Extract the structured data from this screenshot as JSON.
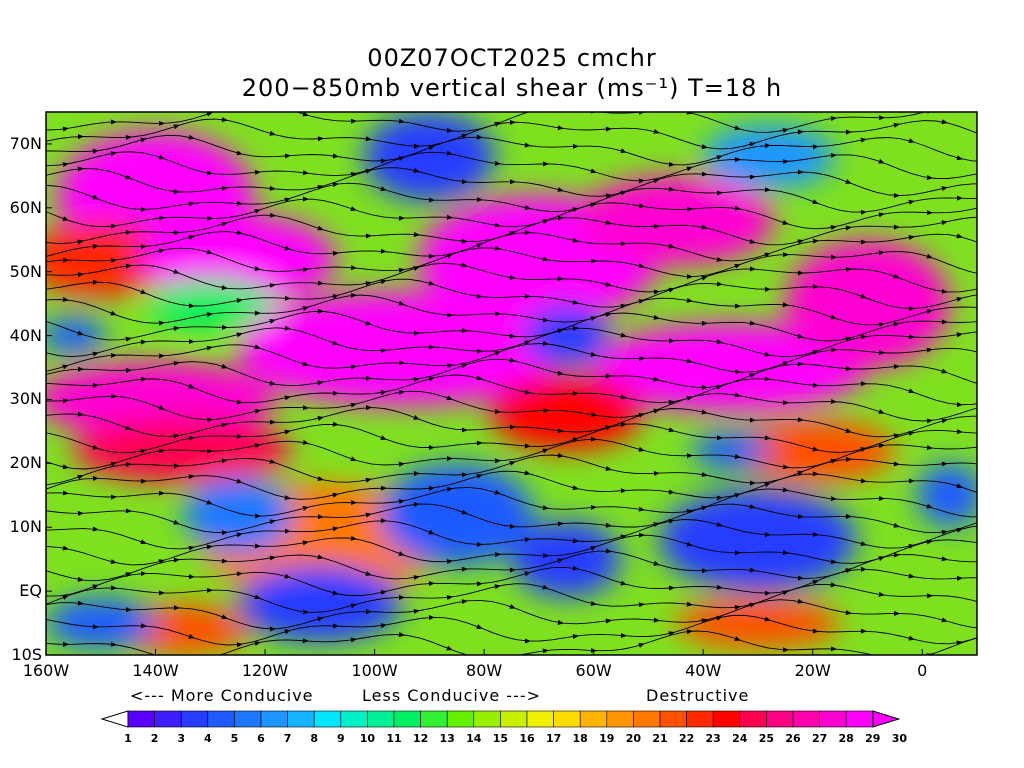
{
  "title_line1": "00Z07OCT2025 cmchr",
  "title_line2": "200−850mb vertical shear (ms⁻¹) T=18 h",
  "lat_labels": [
    "70N",
    "60N",
    "50N",
    "40N",
    "30N",
    "20N",
    "10N",
    "EQ",
    "10S"
  ],
  "lon_labels": [
    "160W",
    "140W",
    "120W",
    "100W",
    "80W",
    "60W",
    "40W",
    "20W",
    "0"
  ],
  "legend": {
    "more_conducive": "<--- More Conducive",
    "less_conducive": "Less Conducive --->",
    "destructive": "Destructive"
  },
  "colorbar": {
    "labels": [
      "1",
      "2",
      "3",
      "4",
      "5",
      "6",
      "7",
      "8",
      "9",
      "10",
      "11",
      "12",
      "13",
      "14",
      "15",
      "16",
      "17",
      "18",
      "19",
      "20",
      "21",
      "22",
      "23",
      "24",
      "25",
      "26",
      "27",
      "28",
      "29",
      "30"
    ],
    "colors": [
      "#ffffff",
      "#5a00ff",
      "#3c1eff",
      "#283cff",
      "#1e5aff",
      "#1e78ff",
      "#1e96ff",
      "#14b4ff",
      "#00e6ff",
      "#00f0c8",
      "#00f096",
      "#00f064",
      "#32f032",
      "#64f000",
      "#96f000",
      "#c8f000",
      "#f0f000",
      "#ffdc00",
      "#ffb400",
      "#ff9600",
      "#ff7800",
      "#ff5000",
      "#ff2800",
      "#ff0000",
      "#ff0050",
      "#ff0082",
      "#ff00aa",
      "#ff00d2",
      "#ff00ff",
      "#ff00ff"
    ]
  },
  "map_data": {
    "lon_range": [
      -160,
      10
    ],
    "lat_range": [
      -10,
      75
    ],
    "shear_blobs": [
      {
        "lon": -140,
        "lat": 62,
        "rx": 18,
        "ry": 10,
        "value": 29
      },
      {
        "lon": -150,
        "lat": 52,
        "rx": 14,
        "ry": 6,
        "value": 23
      },
      {
        "lon": -125,
        "lat": 52,
        "rx": 18,
        "ry": 7,
        "value": 29
      },
      {
        "lon": -95,
        "lat": 38,
        "rx": 30,
        "ry": 9,
        "value": 29
      },
      {
        "lon": -70,
        "lat": 52,
        "rx": 22,
        "ry": 10,
        "value": 29
      },
      {
        "lon": -45,
        "lat": 58,
        "rx": 18,
        "ry": 7,
        "value": 28
      },
      {
        "lon": -140,
        "lat": 30,
        "rx": 22,
        "ry": 6,
        "value": 28
      },
      {
        "lon": -135,
        "lat": 22,
        "rx": 20,
        "ry": 5,
        "value": 25
      },
      {
        "lon": -35,
        "lat": 35,
        "rx": 25,
        "ry": 7,
        "value": 29
      },
      {
        "lon": -10,
        "lat": 45,
        "rx": 15,
        "ry": 10,
        "value": 28
      },
      {
        "lon": -110,
        "lat": 8,
        "rx": 22,
        "ry": 9,
        "value": 21
      },
      {
        "lon": -135,
        "lat": -6,
        "rx": 12,
        "ry": 4,
        "value": 22
      },
      {
        "lon": -30,
        "lat": -5,
        "rx": 15,
        "ry": 4,
        "value": 22
      },
      {
        "lon": -65,
        "lat": 28,
        "rx": 14,
        "ry": 6,
        "value": 24
      },
      {
        "lon": -20,
        "lat": 22,
        "rx": 15,
        "ry": 5,
        "value": 22
      },
      {
        "lon": -90,
        "lat": 68,
        "rx": 12,
        "ry": 7,
        "value": 4
      },
      {
        "lon": -65,
        "lat": 40,
        "rx": 8,
        "ry": 5,
        "value": 4
      },
      {
        "lon": -30,
        "lat": 8,
        "rx": 18,
        "ry": 8,
        "value": 4
      },
      {
        "lon": -110,
        "lat": -2,
        "rx": 15,
        "ry": 6,
        "value": 4
      },
      {
        "lon": -85,
        "lat": 12,
        "rx": 14,
        "ry": 8,
        "value": 5
      },
      {
        "lon": -65,
        "lat": 5,
        "rx": 10,
        "ry": 6,
        "value": 4
      },
      {
        "lon": -150,
        "lat": -5,
        "rx": 10,
        "ry": 4,
        "value": 5
      },
      {
        "lon": -155,
        "lat": 40,
        "rx": 6,
        "ry": 3,
        "value": 5
      },
      {
        "lon": -35,
        "lat": 22,
        "rx": 7,
        "ry": 3,
        "value": 5
      },
      {
        "lon": 5,
        "lat": 15,
        "rx": 6,
        "ry": 5,
        "value": 5
      },
      {
        "lon": -125,
        "lat": 12,
        "rx": 10,
        "ry": 6,
        "value": 6
      },
      {
        "lon": -28,
        "lat": 68,
        "rx": 12,
        "ry": 5,
        "value": 7
      },
      {
        "lon": -130,
        "lat": 45,
        "rx": 12,
        "ry": 4,
        "value": 12
      }
    ]
  }
}
